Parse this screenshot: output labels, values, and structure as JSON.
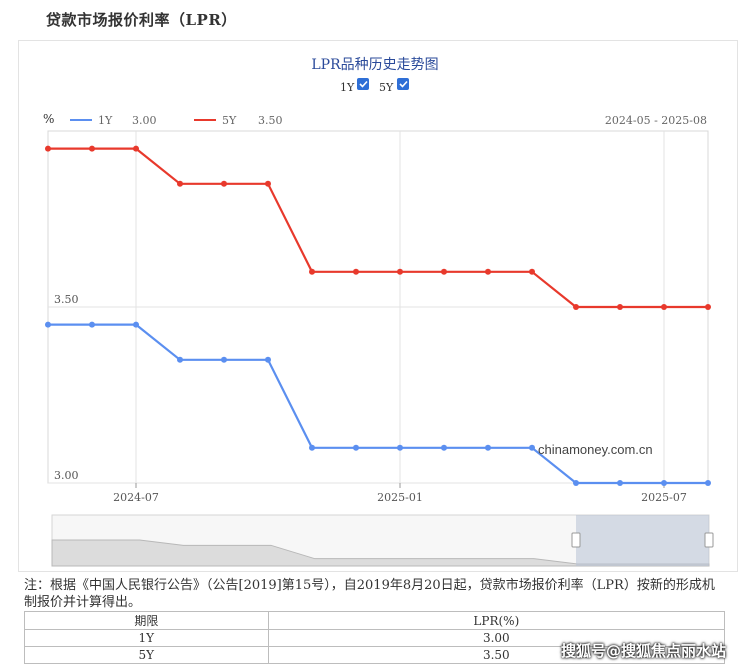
{
  "page": {
    "title": "贷款市场报价利率（LPR）"
  },
  "chart_data": {
    "type": "line",
    "title": "LPR品种历史走势图",
    "toggles": [
      {
        "label": "1Y",
        "checked": true
      },
      {
        "label": "5Y",
        "checked": true
      }
    ],
    "unit": "%",
    "range_label": "2024-05 - 2025-08",
    "x": [
      "2024-05",
      "2024-06",
      "2024-07",
      "2024-08",
      "2024-09",
      "2024-10",
      "2024-11",
      "2024-12",
      "2025-01",
      "2025-02",
      "2025-03",
      "2025-04",
      "2025-05",
      "2025-06",
      "2025-07",
      "2025-08"
    ],
    "xticks": [
      "2024-07",
      "2025-01",
      "2025-07"
    ],
    "yticks": [
      "3.00",
      "3.50"
    ],
    "series": [
      {
        "name": "1Y",
        "legend_value": "3.00",
        "color": "#5b8ff0",
        "values": [
          3.45,
          3.45,
          3.45,
          3.35,
          3.35,
          3.35,
          3.1,
          3.1,
          3.1,
          3.1,
          3.1,
          3.1,
          3.0,
          3.0,
          3.0,
          3.0
        ]
      },
      {
        "name": "5Y",
        "legend_value": "3.50",
        "color": "#e8392c",
        "values": [
          3.95,
          3.95,
          3.95,
          3.85,
          3.85,
          3.85,
          3.6,
          3.6,
          3.6,
          3.6,
          3.6,
          3.6,
          3.5,
          3.5,
          3.5,
          3.5
        ]
      }
    ],
    "source_label": "chinamoney.com.cn",
    "grid": true
  },
  "note": "注：根据《中国人民银行公告》（公告[2019]第15号），自2019年8月20日起，贷款市场报价利率（LPR）按新的形成机制报价并计算得出。",
  "table": {
    "headers": [
      "期限",
      "LPR(%)"
    ],
    "rows": [
      [
        "1Y",
        "3.00"
      ],
      [
        "5Y",
        "3.50"
      ]
    ]
  },
  "watermark": "搜狐号@搜狐焦点丽水站"
}
